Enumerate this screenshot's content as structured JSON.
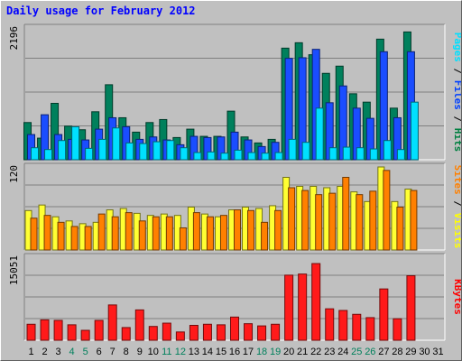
{
  "chart_data": {
    "type": "bar",
    "title": "Daily usage for February 2012",
    "days": [
      "1",
      "2",
      "3",
      "4",
      "5",
      "6",
      "7",
      "8",
      "9",
      "10",
      "11",
      "12",
      "13",
      "14",
      "15",
      "16",
      "17",
      "18",
      "19",
      "20",
      "21",
      "22",
      "23",
      "24",
      "25",
      "26",
      "27",
      "28",
      "29",
      "30",
      "31"
    ],
    "weekend_days": [
      "4",
      "5",
      "11",
      "12",
      "18",
      "19",
      "25",
      "26"
    ],
    "panels": [
      {
        "name": "hits-files-pages",
        "scale_label": "2196",
        "ymax": 2196,
        "right_label": [
          {
            "text": "Pages",
            "color": "#00e0ff"
          },
          {
            "text": "Files",
            "color": "#0040ff"
          },
          {
            "text": "Hits",
            "color": "#008040"
          }
        ],
        "series": [
          {
            "name": "Hits",
            "color": "#00805c",
            "values": [
              620,
              360,
              940,
              560,
              500,
              800,
              1250,
              700,
              460,
              620,
              670,
              370,
              510,
              390,
              390,
              810,
              380,
              280,
              340,
              1860,
              1950,
              1750,
              1440,
              1560,
              1100,
              960,
              2010,
              860,
              2130
            ]
          },
          {
            "name": "Files",
            "color": "#1a4dff",
            "values": [
              420,
              750,
              420,
              340,
              330,
              510,
              700,
              550,
              340,
              380,
              330,
              250,
              390,
              370,
              380,
              460,
              330,
              220,
              290,
              1690,
              1700,
              1840,
              950,
              1230,
              860,
              690,
              1800,
              700,
              1800
            ]
          },
          {
            "name": "Pages",
            "color": "#00e0ff",
            "values": [
              200,
              170,
              320,
              550,
              190,
              340,
              530,
              280,
              270,
              300,
              320,
              200,
              120,
              130,
              110,
              160,
              120,
              110,
              120,
              340,
              290,
              860,
              200,
              210,
              200,
              180,
              320,
              170,
              960
            ]
          }
        ]
      },
      {
        "name": "visits-sites",
        "scale_label": "120",
        "ymax": 120,
        "right_label": [
          {
            "text": "Sites",
            "color": "#ff8000"
          },
          {
            "text": "Visits",
            "color": "#ffff00"
          }
        ],
        "series": [
          {
            "name": "Visits",
            "color": "#ffff33",
            "values": [
              57,
              65,
              48,
              42,
              38,
              40,
              58,
              60,
              53,
              50,
              52,
              50,
              62,
              52,
              48,
              58,
              62,
              60,
              64,
              105,
              92,
              92,
              90,
              92,
              84,
              70,
              120,
              70,
              88
            ]
          },
          {
            "name": "Sites",
            "color": "#ff8000",
            "values": [
              46,
              50,
              40,
              34,
              34,
              52,
              48,
              54,
              42,
              48,
              48,
              32,
              54,
              48,
              50,
              58,
              57,
              40,
              57,
              90,
              86,
              80,
              82,
              105,
              80,
              85,
              115,
              62,
              86
            ]
          }
        ]
      },
      {
        "name": "kbytes",
        "scale_label": "15051",
        "ymax": 15051,
        "right_label": [
          {
            "text": "KBytes",
            "color": "#ff0000"
          }
        ],
        "series": [
          {
            "name": "KBytes",
            "color": "#ff1a1a",
            "values": [
              2900,
              3700,
              3600,
              2800,
              1800,
              3600,
              6400,
              2300,
              5500,
              2500,
              3100,
              1500,
              2700,
              2900,
              2800,
              4200,
              3000,
              2600,
              2900,
              11800,
              12000,
              13900,
              5700,
              5400,
              4700,
              4100,
              9300,
              3900,
              11700
            ]
          }
        ]
      }
    ]
  }
}
